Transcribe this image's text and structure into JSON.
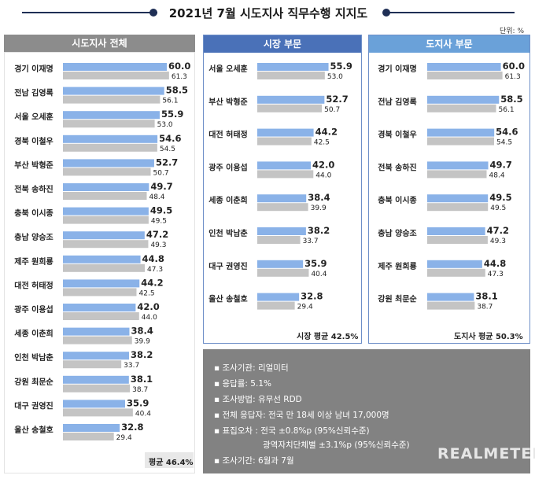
{
  "title": "2021년 7월 시도지사 직무수행 지지도",
  "unit": "단위: %",
  "colors": {
    "blue_bar": "#8ab2e8",
    "gray_bar": "#c4c4c4",
    "header_all": "#8c8c8c",
    "header_city": "#4a71b8",
    "header_prov": "#6aa1d9"
  },
  "chart_data": [
    {
      "type": "bar",
      "title": "시도지사 전체",
      "categories": [
        "경기 이재명",
        "전남 김영록",
        "서울 오세훈",
        "경북 이철우",
        "부산 박형준",
        "전북 송하진",
        "충북 이시종",
        "충남 양승조",
        "제주 원희룡",
        "대전 허태정",
        "광주 이용섭",
        "세종 이춘희",
        "인천 박남춘",
        "강원 최문순",
        "대구 권영진",
        "울산 송철호"
      ],
      "series": [
        {
          "values": [
            60.0,
            58.5,
            55.9,
            54.6,
            52.7,
            49.7,
            49.5,
            47.2,
            44.8,
            44.2,
            42.0,
            38.4,
            38.2,
            38.1,
            35.9,
            32.8
          ]
        },
        {
          "values": [
            61.3,
            56.1,
            53.0,
            54.5,
            50.7,
            48.4,
            49.5,
            49.3,
            47.3,
            42.5,
            44.0,
            39.9,
            33.7,
            38.7,
            40.4,
            29.4
          ]
        }
      ],
      "value_labels": [
        [
          "60.0",
          "58.5",
          "55.9",
          "54.6",
          "52.7",
          "49.7",
          "49.5",
          "47.2",
          "44.8",
          "44.2",
          "42.0",
          "38.4",
          "38.2",
          "38.1",
          "35.9",
          "32.8"
        ],
        [
          "61.3",
          "56.1",
          "53.0",
          "54.5",
          "50.7",
          "48.4",
          "49.5",
          "49.3",
          "47.3",
          "42.5",
          "44.0",
          "39.9",
          "33.7",
          "38.7",
          "40.4",
          "29.4"
        ]
      ],
      "average": "평균 46.4%"
    },
    {
      "type": "bar",
      "title": "시장 부문",
      "categories": [
        "서울 오세훈",
        "부산 박형준",
        "대전 허태정",
        "광주 이용섭",
        "세종 이춘희",
        "인천 박남춘",
        "대구 권영진",
        "울산 송철호"
      ],
      "series": [
        {
          "values": [
            55.9,
            52.7,
            44.2,
            42.0,
            38.4,
            38.2,
            35.9,
            32.8
          ]
        },
        {
          "values": [
            53.0,
            50.7,
            42.5,
            44.0,
            39.9,
            33.7,
            40.4,
            29.4
          ]
        }
      ],
      "value_labels": [
        [
          "55.9",
          "52.7",
          "44.2",
          "42.0",
          "38.4",
          "38.2",
          "35.9",
          "32.8"
        ],
        [
          "53.0",
          "50.7",
          "42.5",
          "44.0",
          "39.9",
          "33.7",
          "40.4",
          "29.4"
        ]
      ],
      "average": "시장 평균 42.5%"
    },
    {
      "type": "bar",
      "title": "도지사 부문",
      "categories": [
        "경기 이재명",
        "전남 김영록",
        "경북 이철우",
        "전북 송하진",
        "충북 이시종",
        "충남 양승조",
        "제주 원희룡",
        "강원 최문순"
      ],
      "series": [
        {
          "values": [
            60.0,
            58.5,
            54.6,
            49.7,
            49.5,
            47.2,
            44.8,
            38.1
          ]
        },
        {
          "values": [
            61.3,
            56.1,
            54.5,
            48.4,
            49.5,
            49.3,
            47.3,
            38.7
          ]
        }
      ],
      "value_labels": [
        [
          "60.0",
          "58.5",
          "54.6",
          "49.7",
          "49.5",
          "47.2",
          "44.8",
          "38.1"
        ],
        [
          "61.3",
          "56.1",
          "54.5",
          "48.4",
          "49.5",
          "49.3",
          "47.3",
          "38.7"
        ]
      ],
      "average": "도지사 평균 50.3%"
    }
  ],
  "notes": [
    "▪ 조사기관: 리얼미터",
    "▪ 응답률: 5.1%",
    "▪ 조사방법: 유무선 RDD",
    "▪ 전체 응답자: 전국 만 18세 이상 남녀 17,000명",
    "▪ 표집오차 : 전국 ±0.8%p (95%신뢰수준)",
    "광역자치단체별 ±3.1%p (95%신뢰수준)",
    "▪ 조사기간: 6월과 7월"
  ],
  "brand": "REALMETER"
}
